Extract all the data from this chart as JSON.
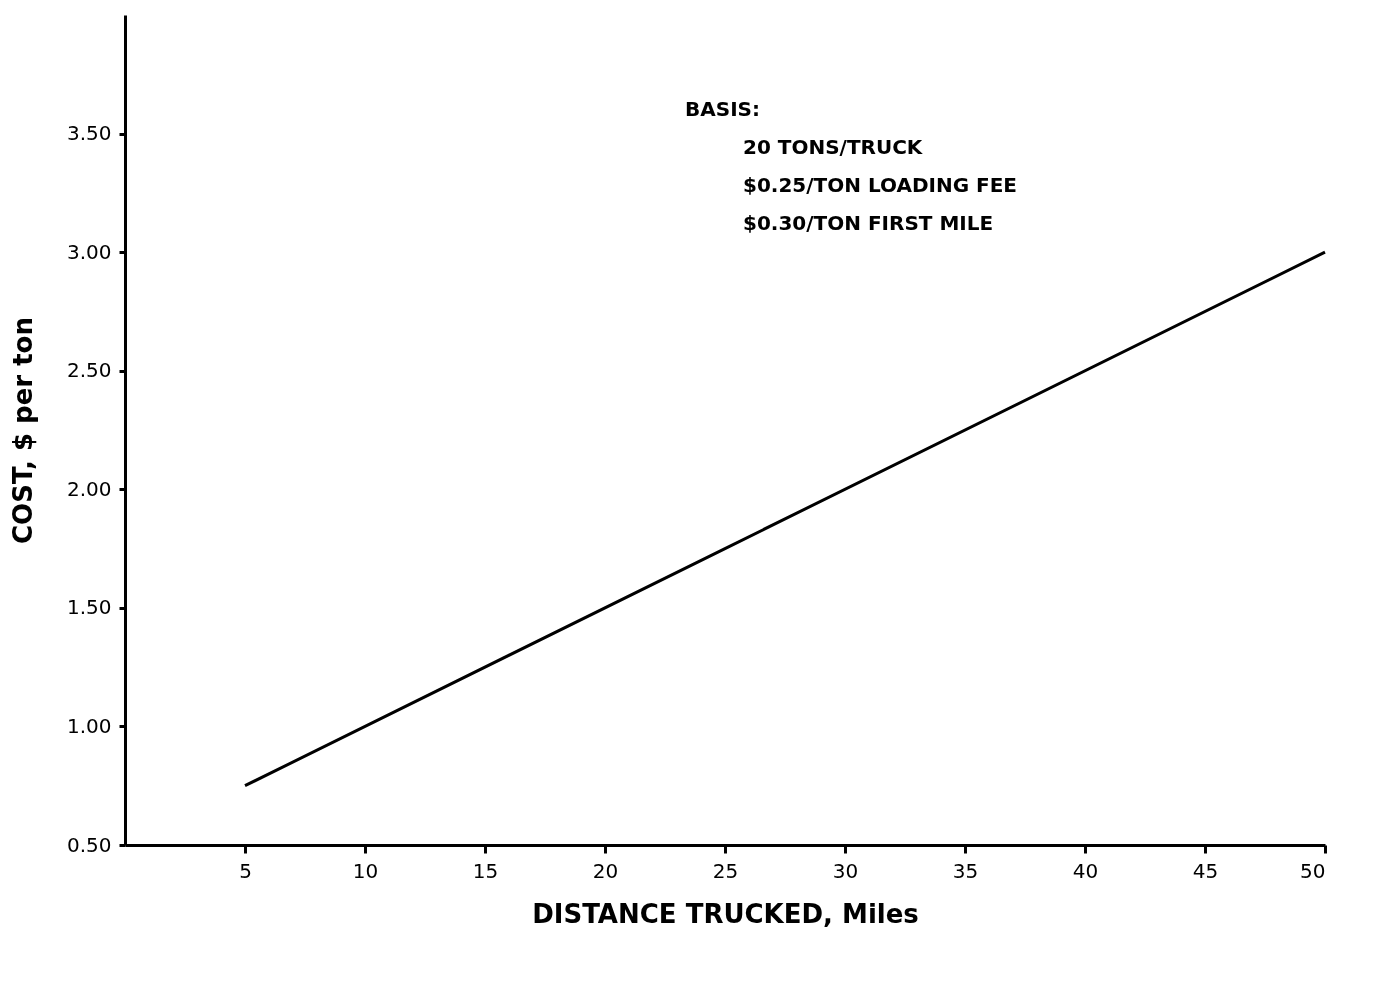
{
  "chart_data": {
    "type": "line",
    "xlabel": "DISTANCE TRUCKED, Miles",
    "ylabel": "COST, $ per ton",
    "annotations": [
      "BASIS:",
      "20 TONS/TRUCK",
      "$0.25/TON LOADING FEE",
      "$0.30/TON FIRST MILE"
    ],
    "x": [
      5,
      25,
      50
    ],
    "series": [
      {
        "color": "#000000",
        "values": [
          0.75,
          1.75,
          3.0
        ]
      }
    ],
    "xlim": [
      0,
      50
    ],
    "xticks": [
      5,
      10,
      15,
      20,
      25,
      30,
      35,
      40,
      45,
      50
    ],
    "ylim": [
      0.5,
      4.0
    ],
    "yticks": [
      {
        "value": 0.5,
        "label": "0.50"
      },
      {
        "value": 1.0,
        "label": "1.00"
      },
      {
        "value": 1.5,
        "label": "1.50"
      },
      {
        "value": 2.0,
        "label": "2.00"
      },
      {
        "value": 2.5,
        "label": "2.50"
      },
      {
        "value": 3.0,
        "label": "3.00"
      },
      {
        "value": 3.5,
        "label": "3.50"
      }
    ],
    "grid": false,
    "marker": "none",
    "line_style": "solid"
  }
}
